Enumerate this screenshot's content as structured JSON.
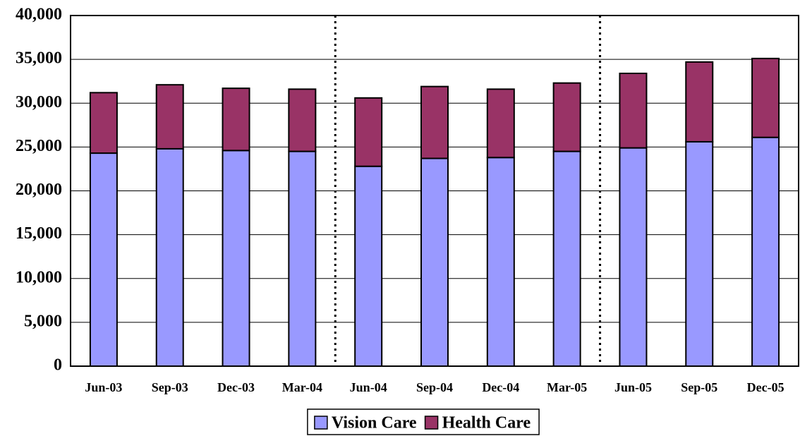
{
  "chart_data": {
    "type": "stacked_bar",
    "categories": [
      "Jun-03",
      "Sep-03",
      "Dec-03",
      "Mar-04",
      "Jun-04",
      "Sep-04",
      "Dec-04",
      "Mar-05",
      "Jun-05",
      "Sep-05",
      "Dec-05"
    ],
    "series": [
      {
        "name": "Vision Care",
        "color": "#9999ff",
        "values": [
          24300,
          24800,
          24600,
          24500,
          22800,
          23700,
          23800,
          24500,
          24900,
          25600,
          26100
        ]
      },
      {
        "name": "Health Care",
        "color": "#993366",
        "values": [
          6900,
          7300,
          7100,
          7100,
          7800,
          8200,
          7800,
          7800,
          8500,
          9100,
          9000
        ]
      }
    ],
    "ylim": [
      0,
      40000
    ],
    "yticks": [
      0,
      {
        "value": 5000,
        "label": "5,000"
      },
      {
        "value": 10000,
        "label": "10,000"
      },
      {
        "value": 15000,
        "label": "15,000"
      },
      {
        "value": 20000,
        "label": "20,000"
      },
      {
        "value": 25000,
        "label": "25,000"
      },
      {
        "value": 30000,
        "label": "30,000"
      },
      {
        "value": 35000,
        "label": "35,000"
      },
      {
        "value": 40000,
        "label": "40,000"
      }
    ],
    "grid": true,
    "legend": "bottom"
  }
}
